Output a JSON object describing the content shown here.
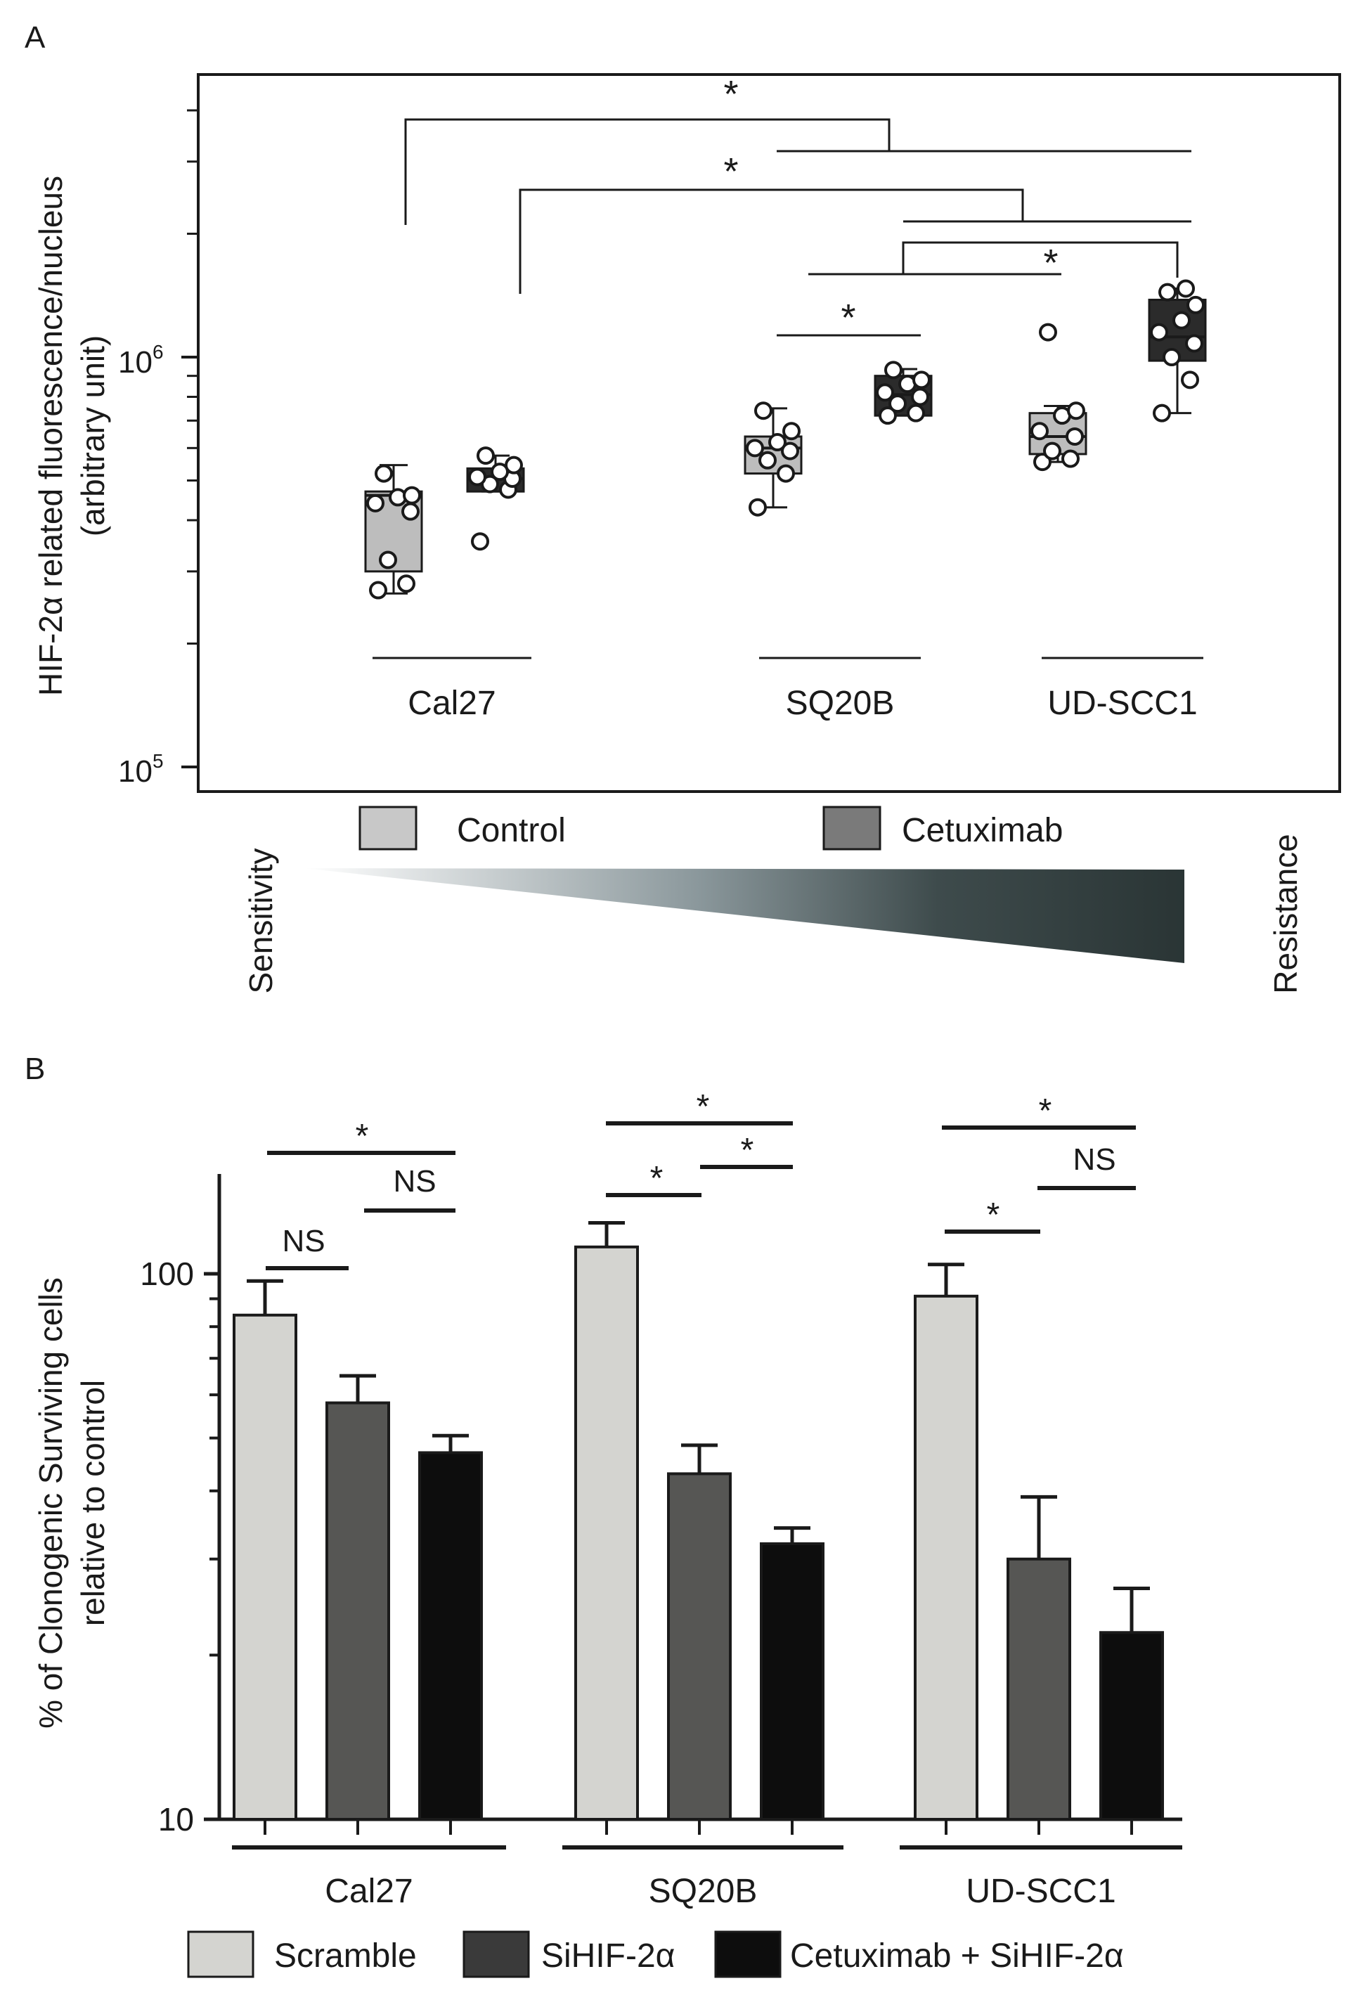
{
  "panel_a": {
    "label": "A",
    "ylabel_line1": "HIF-2α related fluorescence/nucleus",
    "ylabel_line2": "(arbitrary unit)",
    "ytick_base": "10",
    "ytick_exp_low": "5",
    "ytick_exp_high": "6",
    "star": "*",
    "legend_control": "Control",
    "legend_cetuximab": "Cetuximab",
    "sensitivity": "Sensitivity",
    "resistance": "Resistance",
    "colors": {
      "control": "#bdbdbd",
      "cetuximab": "#2b2b2b",
      "legend_cetuximab": "#7a7a7a",
      "gradient_start": "#ffffff",
      "gradient_end": "#2a3535"
    }
  },
  "panel_b": {
    "label": "B",
    "ylabel_line1": "% of Clonogenic Surviving cells",
    "ylabel_line2": "relative to control",
    "star": "*",
    "ns": "NS",
    "legend": [
      "Scramble",
      "SiHIF-2α",
      "Cetuximab + SiHIF-2α"
    ],
    "colors": {
      "scramble": "#d4d4d0",
      "sihif": "#565654",
      "cetuximab_sihif": "#0d0d0d",
      "legend_sihif": "#3a3a3a"
    }
  },
  "chart_data": [
    {
      "type": "box",
      "title": "",
      "ylabel": "HIF-2α related fluorescence/nucleus (arbitrary unit)",
      "yscale": "log",
      "ylim": [
        90000,
        5000000
      ],
      "ytick_values": [
        100000,
        1000000
      ],
      "ytick_labels": [
        "10^5",
        "10^6"
      ],
      "categories": [
        "Cal27",
        "SQ20B",
        "UD-SCC1"
      ],
      "series": [
        {
          "name": "Control",
          "boxes": [
            {
              "group": "Cal27",
              "q1": 300000,
              "median": 460000,
              "q3": 470000,
              "whisker_low": 265000,
              "whisker_high": 545000,
              "points": [
                270000,
                280000,
                320000,
                420000,
                440000,
                455000,
                460000,
                520000
              ]
            },
            {
              "group": "SQ20B",
              "q1": 520000,
              "median": 600000,
              "q3": 640000,
              "whisker_low": 430000,
              "whisker_high": 750000,
              "points": [
                430000,
                520000,
                560000,
                590000,
                600000,
                620000,
                660000,
                740000
              ]
            },
            {
              "group": "UD-SCC1",
              "q1": 580000,
              "median": 640000,
              "q3": 730000,
              "whisker_low": 555000,
              "whisker_high": 760000,
              "points": [
                555000,
                565000,
                590000,
                640000,
                660000,
                720000,
                740000,
                1150000
              ]
            }
          ]
        },
        {
          "name": "Cetuximab",
          "boxes": [
            {
              "group": "Cal27",
              "q1": 470000,
              "median": 505000,
              "q3": 535000,
              "whisker_low": 470000,
              "whisker_high": 575000,
              "points": [
                355000,
                475000,
                490000,
                505000,
                510000,
                525000,
                545000,
                575000
              ]
            },
            {
              "group": "SQ20B",
              "q1": 720000,
              "median": 810000,
              "q3": 900000,
              "whisker_low": 720000,
              "whisker_high": 935000,
              "points": [
                720000,
                730000,
                770000,
                800000,
                820000,
                860000,
                880000,
                930000
              ]
            },
            {
              "group": "UD-SCC1",
              "q1": 980000,
              "median": 1120000,
              "q3": 1380000,
              "whisker_low": 730000,
              "whisker_high": 1470000,
              "points": [
                730000,
                880000,
                1000000,
                1080000,
                1150000,
                1230000,
                1340000,
                1440000,
                1470000
              ]
            }
          ]
        }
      ],
      "significance": [
        "*",
        "*",
        "*",
        "*"
      ]
    },
    {
      "type": "bar",
      "title": "",
      "ylabel": "% of Clonogenic Surviving cells relative to control",
      "yscale": "log",
      "ylim": [
        10,
        150
      ],
      "ytick_values": [
        10,
        100
      ],
      "ytick_labels": [
        "10",
        "100"
      ],
      "categories": [
        "Cal27",
        "SQ20B",
        "UD-SCC1"
      ],
      "series": [
        {
          "name": "Scramble",
          "values": [
            84,
            112,
            91
          ],
          "errors": [
            13,
            12,
            13
          ]
        },
        {
          "name": "SiHIF-2α",
          "values": [
            58,
            43,
            30
          ],
          "errors": [
            7,
            5.5,
            9
          ]
        },
        {
          "name": "Cetuximab + SiHIF-2α",
          "values": [
            47,
            32,
            22
          ],
          "errors": [
            3.5,
            2.2,
            4.5
          ]
        }
      ],
      "significance": [
        {
          "group": "Cal27",
          "labels": [
            "NS",
            "NS",
            "*"
          ]
        },
        {
          "group": "SQ20B",
          "labels": [
            "*",
            "*",
            "*"
          ]
        },
        {
          "group": "UD-SCC1",
          "labels": [
            "*",
            "NS",
            "*"
          ]
        }
      ]
    }
  ]
}
